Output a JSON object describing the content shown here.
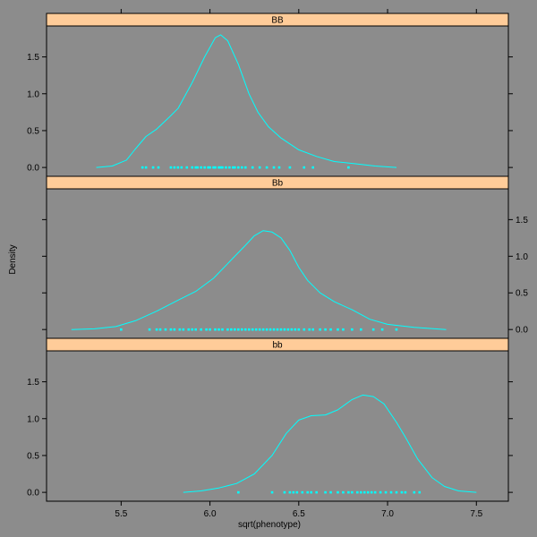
{
  "chart_data": {
    "type": "density",
    "title": "",
    "xlabel": "sqrt(phenotype)",
    "ylabel": "Density",
    "xlim": [
      5.08,
      7.68
    ],
    "ylim": [
      -0.12,
      1.92
    ],
    "x_ticks": [
      "5.5",
      "6.0",
      "6.5",
      "7.0",
      "7.5"
    ],
    "y_ticks": [
      "0.0",
      "0.5",
      "1.0",
      "1.5"
    ],
    "colors": {
      "background": "#8c8c8c",
      "line": "#00ffff",
      "strip": "#ffcc99"
    },
    "panels": [
      {
        "name": "BB",
        "density": [
          [
            5.36,
            0.0
          ],
          [
            5.45,
            0.02
          ],
          [
            5.53,
            0.1
          ],
          [
            5.58,
            0.25
          ],
          [
            5.64,
            0.42
          ],
          [
            5.7,
            0.52
          ],
          [
            5.77,
            0.68
          ],
          [
            5.82,
            0.8
          ],
          [
            5.9,
            1.15
          ],
          [
            5.97,
            1.5
          ],
          [
            6.03,
            1.76
          ],
          [
            6.06,
            1.8
          ],
          [
            6.1,
            1.72
          ],
          [
            6.16,
            1.4
          ],
          [
            6.22,
            1.0
          ],
          [
            6.27,
            0.75
          ],
          [
            6.33,
            0.55
          ],
          [
            6.4,
            0.4
          ],
          [
            6.5,
            0.24
          ],
          [
            6.6,
            0.15
          ],
          [
            6.7,
            0.08
          ],
          [
            6.82,
            0.05
          ],
          [
            6.93,
            0.02
          ],
          [
            7.05,
            0.0
          ]
        ],
        "points": [
          5.62,
          5.64,
          5.68,
          5.71,
          5.78,
          5.8,
          5.82,
          5.84,
          5.87,
          5.9,
          5.92,
          5.93,
          5.95,
          5.97,
          5.99,
          6.0,
          6.02,
          6.03,
          6.05,
          6.06,
          6.07,
          6.09,
          6.11,
          6.13,
          6.14,
          6.16,
          6.18,
          6.2,
          6.24,
          6.28,
          6.32,
          6.36,
          6.39,
          6.45,
          6.53,
          6.58,
          6.78
        ]
      },
      {
        "name": "Bb",
        "density": [
          [
            5.22,
            0.0
          ],
          [
            5.35,
            0.01
          ],
          [
            5.47,
            0.04
          ],
          [
            5.58,
            0.12
          ],
          [
            5.7,
            0.25
          ],
          [
            5.82,
            0.4
          ],
          [
            5.92,
            0.52
          ],
          [
            6.02,
            0.7
          ],
          [
            6.12,
            0.95
          ],
          [
            6.2,
            1.15
          ],
          [
            6.25,
            1.28
          ],
          [
            6.3,
            1.35
          ],
          [
            6.35,
            1.33
          ],
          [
            6.4,
            1.25
          ],
          [
            6.45,
            1.08
          ],
          [
            6.5,
            0.85
          ],
          [
            6.55,
            0.67
          ],
          [
            6.62,
            0.5
          ],
          [
            6.7,
            0.38
          ],
          [
            6.8,
            0.27
          ],
          [
            6.9,
            0.14
          ],
          [
            7.0,
            0.07
          ],
          [
            7.15,
            0.03
          ],
          [
            7.33,
            0.0
          ]
        ],
        "points": [
          5.5,
          5.66,
          5.7,
          5.72,
          5.75,
          5.78,
          5.8,
          5.83,
          5.85,
          5.88,
          5.9,
          5.92,
          5.95,
          5.98,
          6.0,
          6.03,
          6.05,
          6.07,
          6.1,
          6.12,
          6.14,
          6.16,
          6.18,
          6.2,
          6.22,
          6.24,
          6.26,
          6.28,
          6.3,
          6.32,
          6.34,
          6.36,
          6.38,
          6.4,
          6.42,
          6.44,
          6.46,
          6.48,
          6.5,
          6.53,
          6.56,
          6.58,
          6.62,
          6.65,
          6.68,
          6.72,
          6.75,
          6.8,
          6.85,
          6.92,
          6.97,
          7.05
        ]
      },
      {
        "name": "bb",
        "density": [
          [
            5.85,
            0.0
          ],
          [
            5.95,
            0.02
          ],
          [
            6.05,
            0.06
          ],
          [
            6.15,
            0.12
          ],
          [
            6.25,
            0.25
          ],
          [
            6.35,
            0.5
          ],
          [
            6.43,
            0.8
          ],
          [
            6.5,
            0.98
          ],
          [
            6.57,
            1.04
          ],
          [
            6.65,
            1.05
          ],
          [
            6.72,
            1.12
          ],
          [
            6.8,
            1.26
          ],
          [
            6.86,
            1.32
          ],
          [
            6.92,
            1.3
          ],
          [
            6.98,
            1.2
          ],
          [
            7.05,
            0.95
          ],
          [
            7.1,
            0.75
          ],
          [
            7.17,
            0.45
          ],
          [
            7.25,
            0.2
          ],
          [
            7.32,
            0.08
          ],
          [
            7.4,
            0.02
          ],
          [
            7.5,
            0.0
          ]
        ],
        "points": [
          6.16,
          6.35,
          6.42,
          6.45,
          6.47,
          6.49,
          6.52,
          6.55,
          6.57,
          6.6,
          6.65,
          6.68,
          6.72,
          6.75,
          6.78,
          6.8,
          6.83,
          6.85,
          6.87,
          6.89,
          6.91,
          6.93,
          6.96,
          6.99,
          7.02,
          7.05,
          7.08,
          7.1,
          7.15,
          7.18
        ]
      }
    ]
  }
}
